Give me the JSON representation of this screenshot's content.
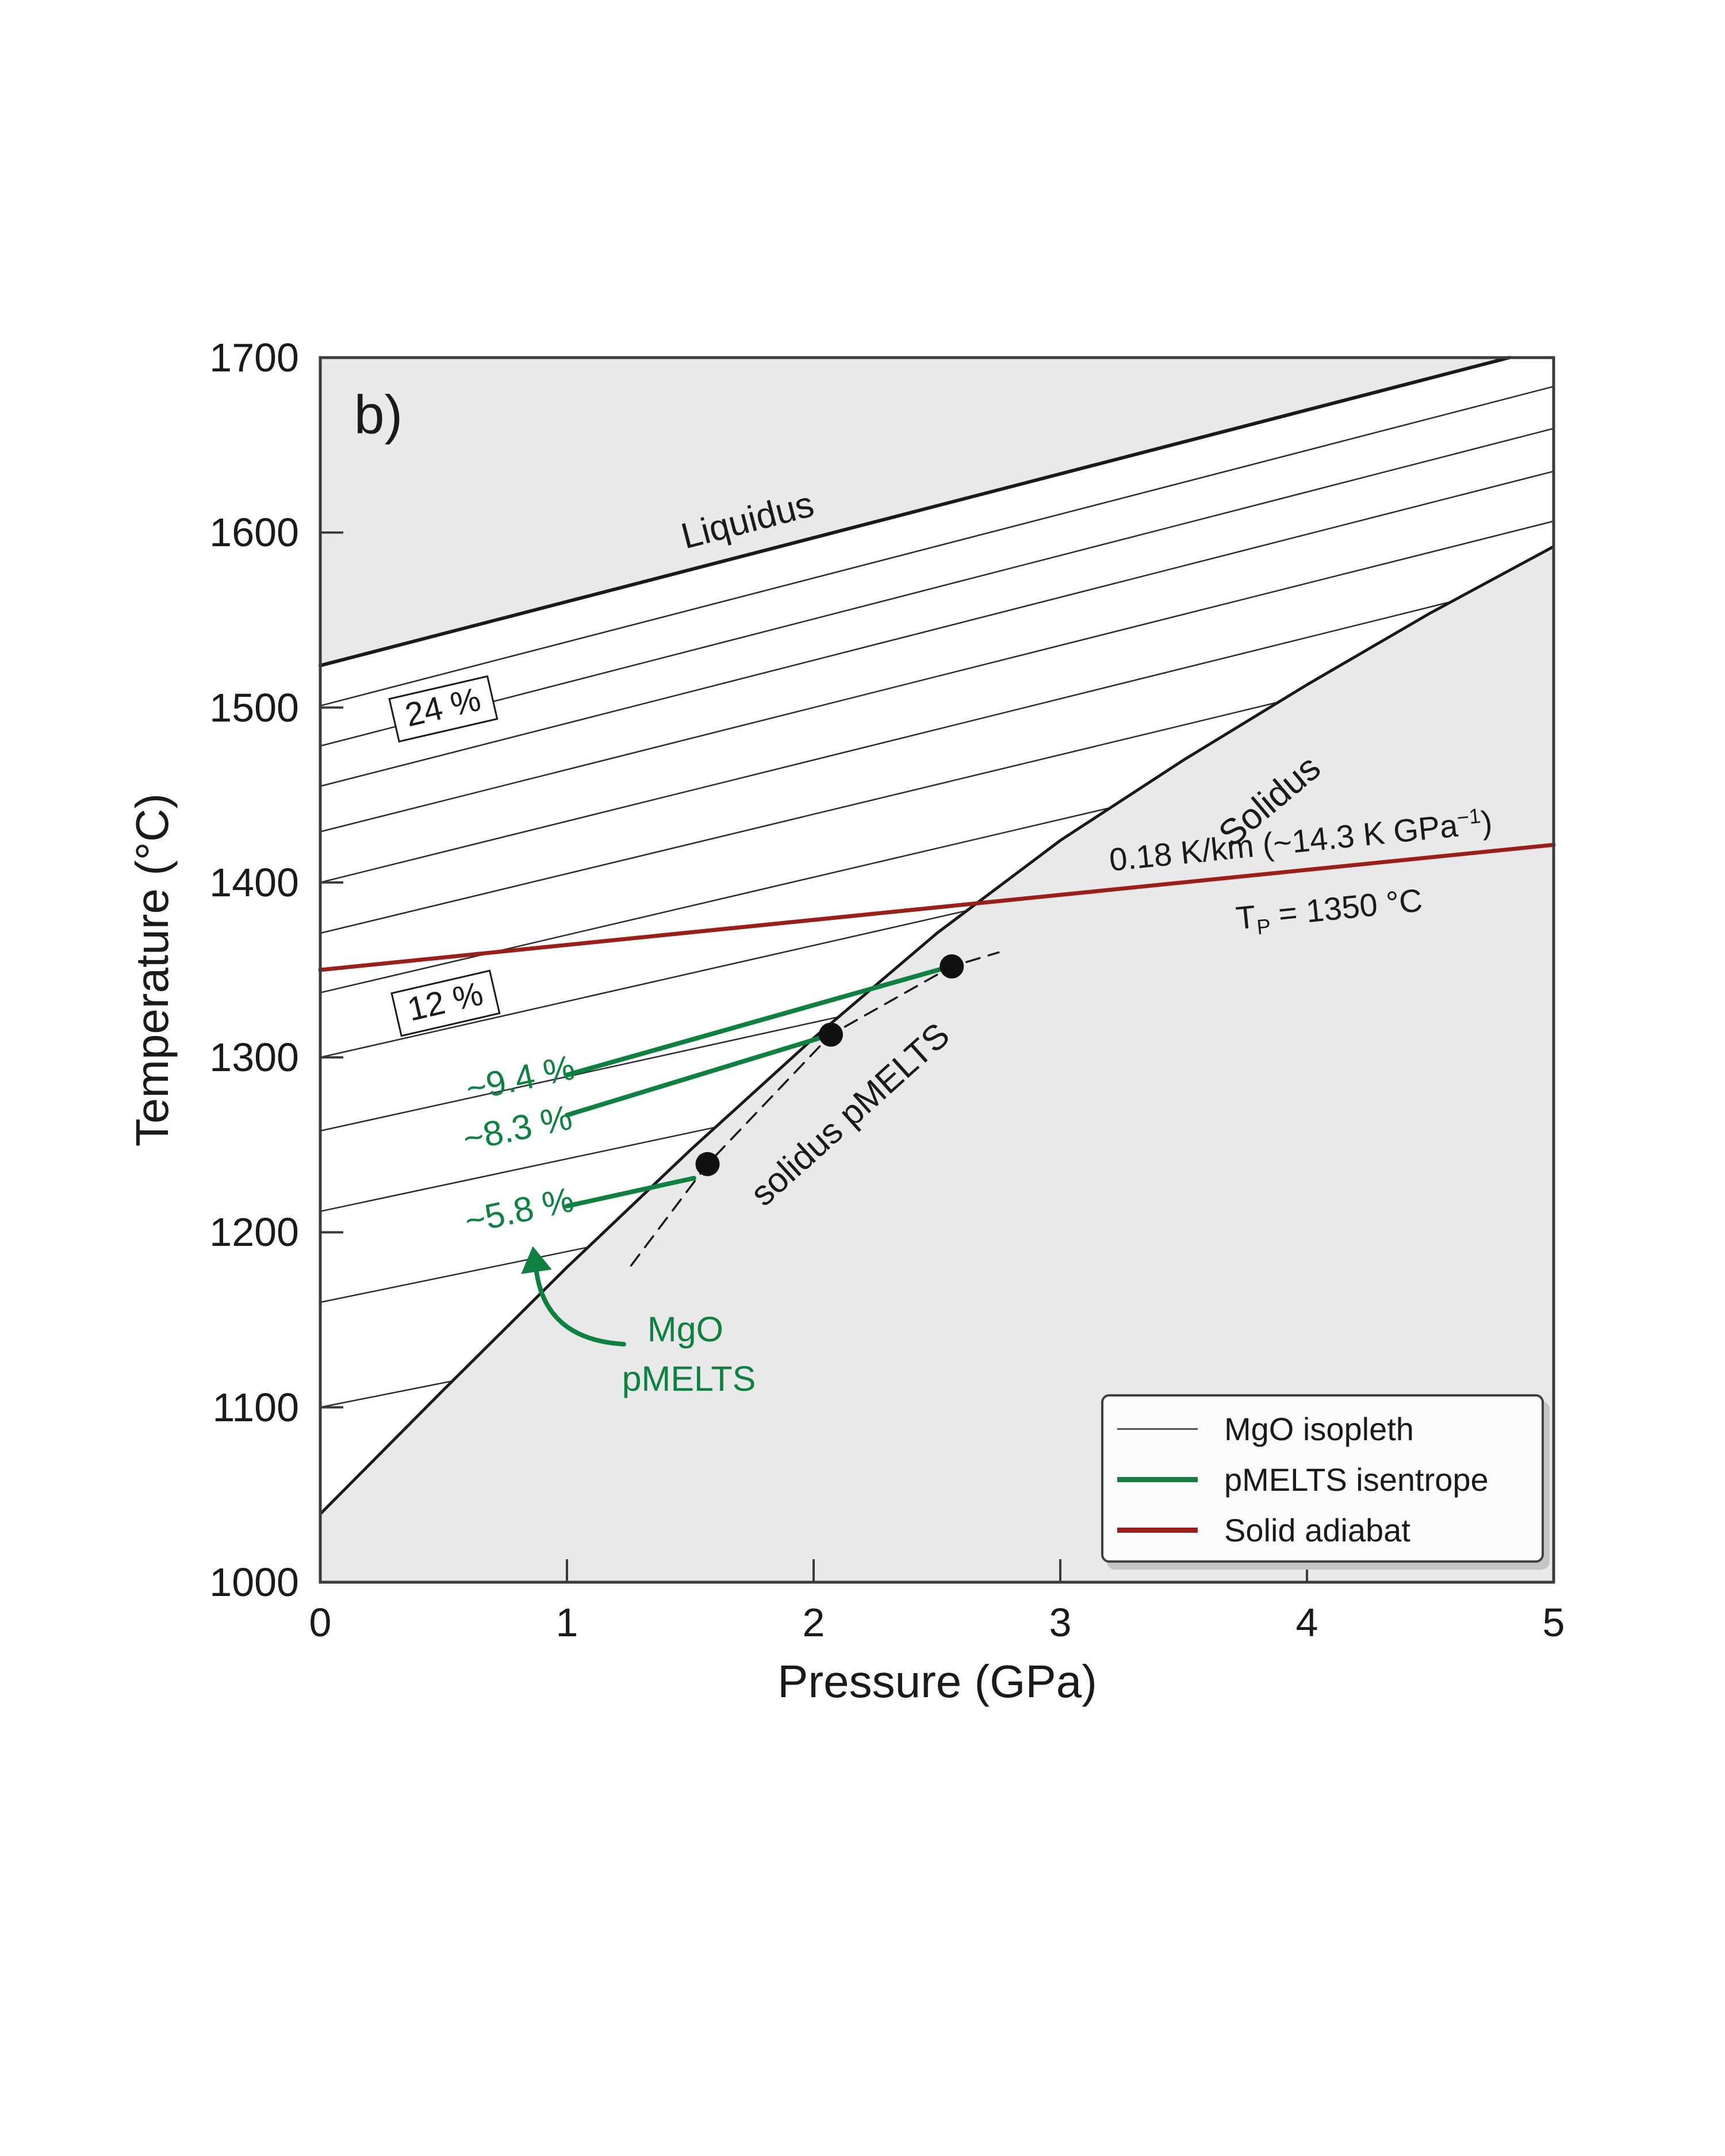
{
  "panel_label": "b)",
  "axes": {
    "x": {
      "label": "Pressure (GPa)",
      "ticks": [
        0,
        1,
        2,
        3,
        4,
        5
      ],
      "range": [
        0,
        5
      ]
    },
    "y": {
      "label": "Temperature (°C)",
      "ticks": [
        1000,
        1100,
        1200,
        1300,
        1400,
        1500,
        1600,
        1700
      ],
      "range": [
        1000,
        1700
      ]
    }
  },
  "colors": {
    "green": "#0e8140",
    "dark_red": "#9b1e19",
    "line_black": "#1a1a1a",
    "spine": "#3a3a3a",
    "shaded": "#e9e9e9",
    "isopleth": "#2b2b2b",
    "marker": "#111111"
  },
  "annotations": {
    "liquidus_label": "Liquidus",
    "solidus_label": "Solidus",
    "pmelts_solidus_label": "solidus pMELTS",
    "adiabat_line1": {
      "prefix": "0.18 K/km (~14.3 K GPa",
      "sup": "−1",
      "suffix": ")"
    },
    "adiabat_line2": {
      "t": "T",
      "sub": "P",
      "rest": " = 1350 °C"
    },
    "isopleth_box_upper": "24 %",
    "isopleth_box_lower": "12 %",
    "isentrope_labels": [
      "~9.4 %",
      "~8.3 %",
      "~5.8 %"
    ],
    "mgo_label_line1": "MgO",
    "mgo_label_line2": "pMELTS"
  },
  "legend": {
    "items": [
      {
        "label": "MgO isopleth",
        "color": "#555555",
        "sample_height": 3
      },
      {
        "label": "pMELTS isentrope",
        "color": "#0e8140",
        "sample_height": 9
      },
      {
        "label": "Solid adiabat",
        "color": "#9b1e19",
        "sample_height": 9
      }
    ]
  },
  "chart_data": {
    "type": "line",
    "title": "",
    "xlabel": "Pressure (GPa)",
    "ylabel": "Temperature (°C)",
    "xlim": [
      0,
      5
    ],
    "ylim": [
      1000,
      1700
    ],
    "grid": false,
    "legend_position": "lower right",
    "series": [
      {
        "name": "Liquidus",
        "points": [
          [
            0,
            1524
          ],
          [
            4.82,
            1700
          ]
        ],
        "color": "#1a1a1a",
        "width": 6,
        "style": "solid"
      },
      {
        "name": "Solidus",
        "points": [
          [
            0,
            1039
          ],
          [
            0.5,
            1110
          ],
          [
            1.0,
            1180
          ],
          [
            1.5,
            1247
          ],
          [
            2.0,
            1311
          ],
          [
            2.5,
            1371
          ],
          [
            3.0,
            1424
          ],
          [
            3.5,
            1470
          ],
          [
            4.0,
            1513
          ],
          [
            4.5,
            1554
          ],
          [
            5.0,
            1592
          ]
        ],
        "color": "#1a1a1a",
        "width": 5,
        "style": "solid"
      },
      {
        "name": "solidus pMELTS",
        "points": [
          [
            1.26,
            1181
          ],
          [
            1.57,
            1239
          ],
          [
            2.07,
            1313
          ],
          [
            2.56,
            1352
          ],
          [
            2.75,
            1360
          ]
        ],
        "color": "#1a1a1a",
        "width": 3.5,
        "style": "dashed"
      },
      {
        "name": "pMELTS isentrope ~9.4 %",
        "points": [
          [
            1.0,
            1290
          ],
          [
            2.555,
            1352
          ]
        ],
        "color": "#0e8140",
        "width": 8,
        "style": "solid"
      },
      {
        "name": "pMELTS isentrope ~8.3 %",
        "points": [
          [
            1.0,
            1267
          ],
          [
            2.07,
            1313
          ]
        ],
        "color": "#0e8140",
        "width": 8,
        "style": "solid"
      },
      {
        "name": "pMELTS isentrope ~5.8 %",
        "points": [
          [
            1.0,
            1215
          ],
          [
            1.515,
            1231
          ]
        ],
        "color": "#0e8140",
        "width": 8,
        "style": "solid"
      },
      {
        "name": "Solid adiabat (Tp = 1350 °C, 0.18 K/km ≈ 14.3 K/GPa)",
        "points": [
          [
            0,
            1350
          ],
          [
            5,
            1421.5
          ]
        ],
        "color": "#9b1e19",
        "width": 7,
        "style": "solid"
      }
    ],
    "markers_on_pmelts_solidus": [
      [
        1.57,
        1239
      ],
      [
        2.07,
        1313
      ],
      [
        2.56,
        1352
      ]
    ],
    "isopleths": {
      "description": "MgO isopleths: thin lines from left axis at T0 (°C) with slope (°C/GPa), clipped at the solidus",
      "start_temps": [
        1501,
        1478,
        1455,
        1429,
        1400,
        1371,
        1337,
        1300,
        1258,
        1212,
        1160,
        1100
      ],
      "slopes": [
        36.5,
        36.3,
        36.0,
        35.5,
        35.0,
        34.0,
        33.0,
        32.0,
        31.0,
        30.0,
        29.0,
        28.0
      ]
    },
    "isopleth_labels": [
      {
        "text": "24 %",
        "near_T_at_P0": 1478
      },
      {
        "text": "12 %",
        "near_T_at_P0": 1314
      }
    ]
  }
}
